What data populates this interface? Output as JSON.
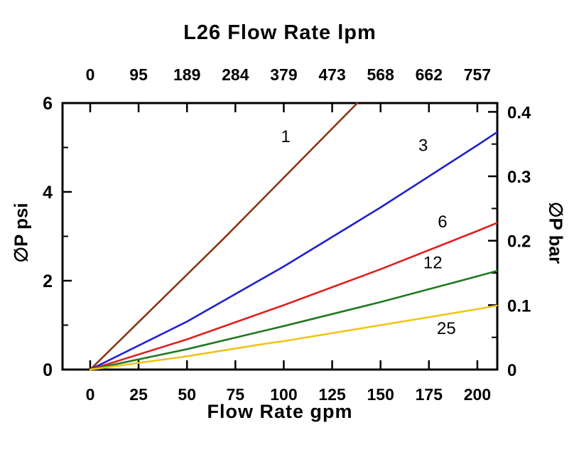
{
  "chart_data": {
    "type": "line",
    "title": "L26 Flow Rate lpm",
    "xlabel": "Flow Rate gpm",
    "ylabel_left": "∅P psi",
    "ylabel_right": "∅P bar",
    "xlim": [
      -14.3,
      210.3
    ],
    "ylim": [
      0,
      6
    ],
    "x_ticks_gpm": [
      0,
      25,
      50,
      75,
      100,
      125,
      150,
      175,
      200
    ],
    "x_tick_labels_bottom": [
      "0",
      "25",
      "50",
      "75",
      "100",
      "125",
      "150",
      "175",
      "200"
    ],
    "top_tick_labels_lpm": [
      "0",
      "95",
      "189",
      "284",
      "379",
      "473",
      "568",
      "662",
      "757"
    ],
    "y_ticks_left_psi": [
      0,
      2,
      4,
      6
    ],
    "y_tick_labels_left": [
      "0",
      "2",
      "4",
      "6"
    ],
    "y_minor_ticks_left_psi": [
      1,
      3,
      5
    ],
    "y_ticks_right_bar": [
      0,
      0.1,
      0.2,
      0.3,
      0.4
    ],
    "y_tick_labels_right": [
      "0",
      "0.1",
      "0.2",
      "0.3",
      "0.4"
    ],
    "y_minor_ticks_right_bar": [
      0.05,
      0.15,
      0.25,
      0.35
    ],
    "psi_per_bar": 14.5038,
    "grid": false,
    "axis_color": "#000000",
    "series": [
      {
        "label": "1",
        "color": "#8c3513",
        "points": [
          [
            0,
            0
          ],
          [
            69,
            2.95
          ],
          [
            138,
            6
          ]
        ],
        "label_pos": [
          101,
          5.12
        ]
      },
      {
        "label": "3",
        "color": "#2121cd",
        "points": [
          [
            0,
            0
          ],
          [
            50,
            1.08
          ],
          [
            100,
            2.32
          ],
          [
            150,
            3.65
          ],
          [
            200,
            5.05
          ],
          [
            210,
            5.34
          ]
        ],
        "label_pos": [
          172,
          4.92
        ]
      },
      {
        "label": "6",
        "color": "#e01f1f",
        "points": [
          [
            0,
            0
          ],
          [
            50,
            0.68
          ],
          [
            100,
            1.45
          ],
          [
            150,
            2.26
          ],
          [
            200,
            3.12
          ],
          [
            210,
            3.3
          ]
        ],
        "label_pos": [
          182,
          3.2
        ]
      },
      {
        "label": "12",
        "color": "#1f7a1f",
        "points": [
          [
            0,
            0
          ],
          [
            50,
            0.46
          ],
          [
            100,
            0.98
          ],
          [
            150,
            1.52
          ],
          [
            200,
            2.1
          ],
          [
            210,
            2.22
          ]
        ],
        "label_pos": [
          177,
          2.28
        ]
      },
      {
        "label": "25",
        "color": "#f0c419",
        "points": [
          [
            0,
            0
          ],
          [
            50,
            0.3
          ],
          [
            90,
            0.58
          ],
          [
            100,
            0.64
          ],
          [
            150,
            1.0
          ],
          [
            200,
            1.36
          ],
          [
            210,
            1.44
          ]
        ],
        "label_pos": [
          184,
          0.8
        ]
      }
    ]
  }
}
